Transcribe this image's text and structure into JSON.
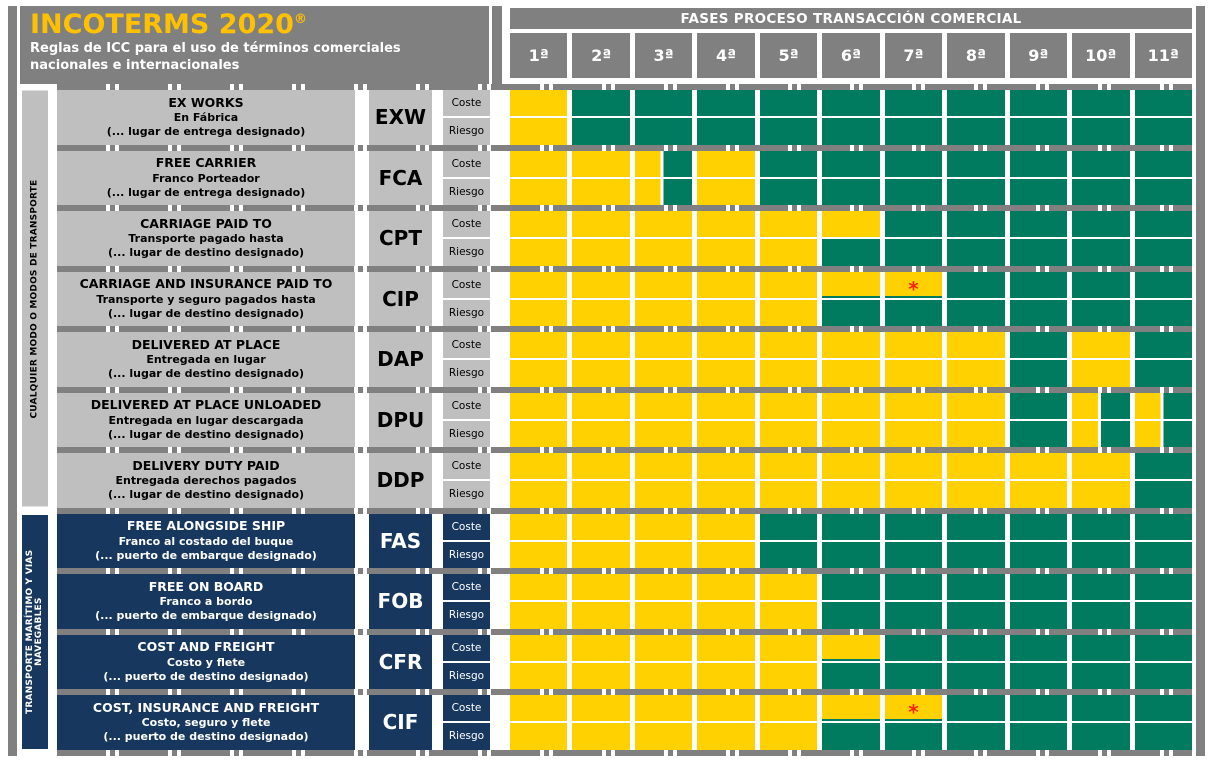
{
  "header": {
    "title": "INCOTERMS 2020",
    "title_reg": "®",
    "subtitle": "Reglas de ICC para el uso de términos comerciales nacionales e internacionales",
    "phases_title": "FASES PROCESO TRANSACCIÓN COMERCIAL",
    "phases": [
      "1ª",
      "2ª",
      "3ª",
      "4ª",
      "5ª",
      "6ª",
      "7ª",
      "8ª",
      "9ª",
      "10ª",
      "11ª"
    ]
  },
  "groups": [
    {
      "id": "any",
      "label": "CUALQUIER MODO O MODOS DE TRANSPORTE"
    },
    {
      "id": "sea",
      "label": "TRANSPORTE MARÍTIMO Y VIAS NAVEGABLES"
    }
  ],
  "row_labels": {
    "cost": "Coste",
    "risk": "Riesgo"
  },
  "asterisk": "*",
  "colors": {
    "seller_yellow": "#FFD100",
    "buyer_green": "#007B5F",
    "navy_blue": "#17375E",
    "band_gray": "#808080",
    "label_gray": "#BFBFBF",
    "title_yellow": "#FFC000",
    "asterisk_red": "#FF2400"
  },
  "cell_tokens": {
    "Y": "yellow-full",
    "G": "green-full",
    "YG": "split-yellow-left-green-right",
    "Y*": "yellow-with-red-asterisk",
    "Yu": "yellow-with-thin-green-bottom-edge"
  },
  "rows": [
    {
      "code": "EXW",
      "group": "any",
      "name_en": "EX WORKS",
      "name_es": "En Fábrica",
      "place": "(... lugar de entrega designado)",
      "coste": [
        "Y",
        "G",
        "G",
        "G",
        "G",
        "G",
        "G",
        "G",
        "G",
        "G",
        "G"
      ],
      "riesgo": [
        "Y",
        "G",
        "G",
        "G",
        "G",
        "G",
        "G",
        "G",
        "G",
        "G",
        "G"
      ]
    },
    {
      "code": "FCA",
      "group": "any",
      "name_en": "FREE CARRIER",
      "name_es": "Franco Porteador",
      "place": "(... lugar de entrega designado)",
      "coste": [
        "Y",
        "Y",
        "YG",
        "Y",
        "G",
        "G",
        "G",
        "G",
        "G",
        "G",
        "G"
      ],
      "riesgo": [
        "Y",
        "Y",
        "YG",
        "Y",
        "G",
        "G",
        "G",
        "G",
        "G",
        "G",
        "G"
      ]
    },
    {
      "code": "CPT",
      "group": "any",
      "name_en": "CARRIAGE PAID TO",
      "name_es": "Transporte pagado hasta",
      "place": "(... lugar de destino designado)",
      "coste": [
        "Y",
        "Y",
        "Y",
        "Y",
        "Y",
        "Y",
        "G",
        "G",
        "G",
        "G",
        "G"
      ],
      "riesgo": [
        "Y",
        "Y",
        "Y",
        "Y",
        "Y",
        "G",
        "G",
        "G",
        "G",
        "G",
        "G"
      ]
    },
    {
      "code": "CIP",
      "group": "any",
      "name_en": "CARRIAGE AND INSURANCE PAID TO",
      "name_es": "Transporte y seguro pagados hasta",
      "place": "(... lugar de destino designado)",
      "coste": [
        "Y",
        "Y",
        "Y",
        "Y",
        "Y",
        "Yu",
        "Y*",
        "G",
        "G",
        "G",
        "G"
      ],
      "riesgo": [
        "Y",
        "Y",
        "Y",
        "Y",
        "Y",
        "G",
        "G",
        "G",
        "G",
        "G",
        "G"
      ]
    },
    {
      "code": "DAP",
      "group": "any",
      "name_en": "DELIVERED AT PLACE",
      "name_es": "Entregada en lugar",
      "place": "(... lugar de destino designado)",
      "coste": [
        "Y",
        "Y",
        "Y",
        "Y",
        "Y",
        "Y",
        "Y",
        "Y",
        "G",
        "Y",
        "G"
      ],
      "riesgo": [
        "Y",
        "Y",
        "Y",
        "Y",
        "Y",
        "Y",
        "Y",
        "Y",
        "G",
        "Y",
        "G"
      ]
    },
    {
      "code": "DPU",
      "group": "any",
      "name_en": "DELIVERED AT PLACE UNLOADED",
      "name_es": "Entregada en lugar descargada",
      "place": "(... lugar de destino designado)",
      "coste": [
        "Y",
        "Y",
        "Y",
        "Y",
        "Y",
        "Y",
        "Y",
        "Y",
        "G",
        "YG",
        "YG"
      ],
      "riesgo": [
        "Y",
        "Y",
        "Y",
        "Y",
        "Y",
        "Y",
        "Y",
        "Y",
        "G",
        "YG",
        "YG"
      ]
    },
    {
      "code": "DDP",
      "group": "any",
      "name_en": "DELIVERY DUTY PAID",
      "name_es": "Entregada derechos pagados",
      "place": "(... lugar de destino designado)",
      "coste": [
        "Y",
        "Y",
        "Y",
        "Y",
        "Y",
        "Y",
        "Y",
        "Y",
        "Y",
        "Y",
        "G"
      ],
      "riesgo": [
        "Y",
        "Y",
        "Y",
        "Y",
        "Y",
        "Y",
        "Y",
        "Y",
        "Y",
        "Y",
        "G"
      ]
    },
    {
      "code": "FAS",
      "group": "sea",
      "name_en": "FREE ALONGSIDE SHIP",
      "name_es": "Franco al costado del buque",
      "place": "(... puerto de embarque designado)",
      "coste": [
        "Y",
        "Y",
        "Y",
        "Y",
        "G",
        "G",
        "G",
        "G",
        "G",
        "G",
        "G"
      ],
      "riesgo": [
        "Y",
        "Y",
        "Y",
        "Y",
        "G",
        "G",
        "G",
        "G",
        "G",
        "G",
        "G"
      ]
    },
    {
      "code": "FOB",
      "group": "sea",
      "name_en": "FREE ON BOARD",
      "name_es": "Franco a bordo",
      "place": "(... puerto de embarque designado)",
      "coste": [
        "Y",
        "Y",
        "Y",
        "Y",
        "Y",
        "G",
        "G",
        "G",
        "G",
        "G",
        "G"
      ],
      "riesgo": [
        "Y",
        "Y",
        "Y",
        "Y",
        "Y",
        "G",
        "G",
        "G",
        "G",
        "G",
        "G"
      ]
    },
    {
      "code": "CFR",
      "group": "sea",
      "name_en": "COST AND FREIGHT",
      "name_es": "Costo y flete",
      "place": "(... puerto de destino designado)",
      "coste": [
        "Y",
        "Y",
        "Y",
        "Y",
        "Y",
        "Yu",
        "G",
        "G",
        "G",
        "G",
        "G"
      ],
      "riesgo": [
        "Y",
        "Y",
        "Y",
        "Y",
        "Y",
        "G",
        "G",
        "G",
        "G",
        "G",
        "G"
      ]
    },
    {
      "code": "CIF",
      "group": "sea",
      "name_en": "COST, INSURANCE AND FREIGHT",
      "name_es": "Costo, seguro y flete",
      "place": "(... puerto de destino designado)",
      "coste": [
        "Y",
        "Y",
        "Y",
        "Y",
        "Y",
        "Yu",
        "Y*",
        "G",
        "G",
        "G",
        "G"
      ],
      "riesgo": [
        "Y",
        "Y",
        "Y",
        "Y",
        "Y",
        "G",
        "G",
        "G",
        "G",
        "G",
        "G"
      ]
    }
  ]
}
